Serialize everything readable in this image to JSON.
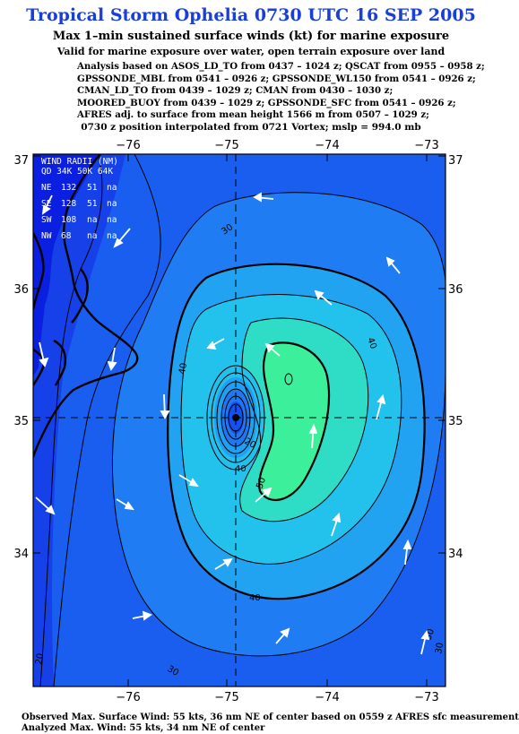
{
  "title": "Tropical Storm Ophelia 0730 UTC 16 SEP 2005",
  "subtitle": "Max 1–min sustained surface winds (kt) for marine exposure",
  "validity": "Valid for marine exposure over water, open terrain exposure over land",
  "analysis_lines": [
    "Analysis based on  ASOS_LD_TO from 0437 – 1024 z;  QSCAT from 0955 – 0958 z;",
    "GPSSONDE_MBL from 0541 – 0926 z;  GPSSONDE_WL150 from 0541 – 0926 z;",
    "CMAN_LD_TO from 0439 – 1029 z;  CMAN from 0430 – 1030 z;",
    "MOORED_BUOY from 0439 – 1029 z;  GPSSONDE_SFC from 0541 – 0926 z;",
    "AFRES adj. to surface from mean height 1566 m from 0507 – 1029 z;"
  ],
  "position_line": "0730 z position interpolated from 0721 Vortex; mslp = 994.0 mb",
  "footer_lines": [
    "Observed Max. Surface Wind: 55 kts, 36 nm NE of center based on 0559 z AFRES sfc measurement",
    "Analyzed Max. Wind: 55 kts, 34 nm NE of center"
  ],
  "map": {
    "lon_ticks": [
      "−76",
      "−75",
      "−74",
      "−73"
    ],
    "lat_ticks": [
      "37",
      "36",
      "35",
      "34"
    ],
    "center": {
      "lon": -74.85,
      "lat": 35.03
    },
    "colors": {
      "land": "#0a1fe0",
      "outer": "#1550f0",
      "ring1": "#1f78f2",
      "ring2": "#1fa0f2",
      "ring3": "#22c6ec",
      "ring4": "#2ee0c8",
      "ring5": "#3cf0a0",
      "coast": "#000000"
    }
  },
  "wind_radii": {
    "header": "WIND RADII (NM)",
    "columns": "QD 34K 50K 64K",
    "rows": [
      {
        "q": "NE",
        "r34": "132",
        "r50": "51",
        "r64": "na"
      },
      {
        "q": "SE",
        "r34": "128",
        "r50": "51",
        "r64": "na"
      },
      {
        "q": "SW",
        "r34": "108",
        "r50": "na",
        "r64": "na"
      },
      {
        "q": "NW",
        "r34": "68",
        "r50": "na",
        "r64": "na"
      }
    ]
  },
  "contour_labels": [
    "30",
    "40",
    "40",
    "40",
    "30",
    "50",
    "20",
    "40",
    "30",
    "30",
    "20"
  ]
}
